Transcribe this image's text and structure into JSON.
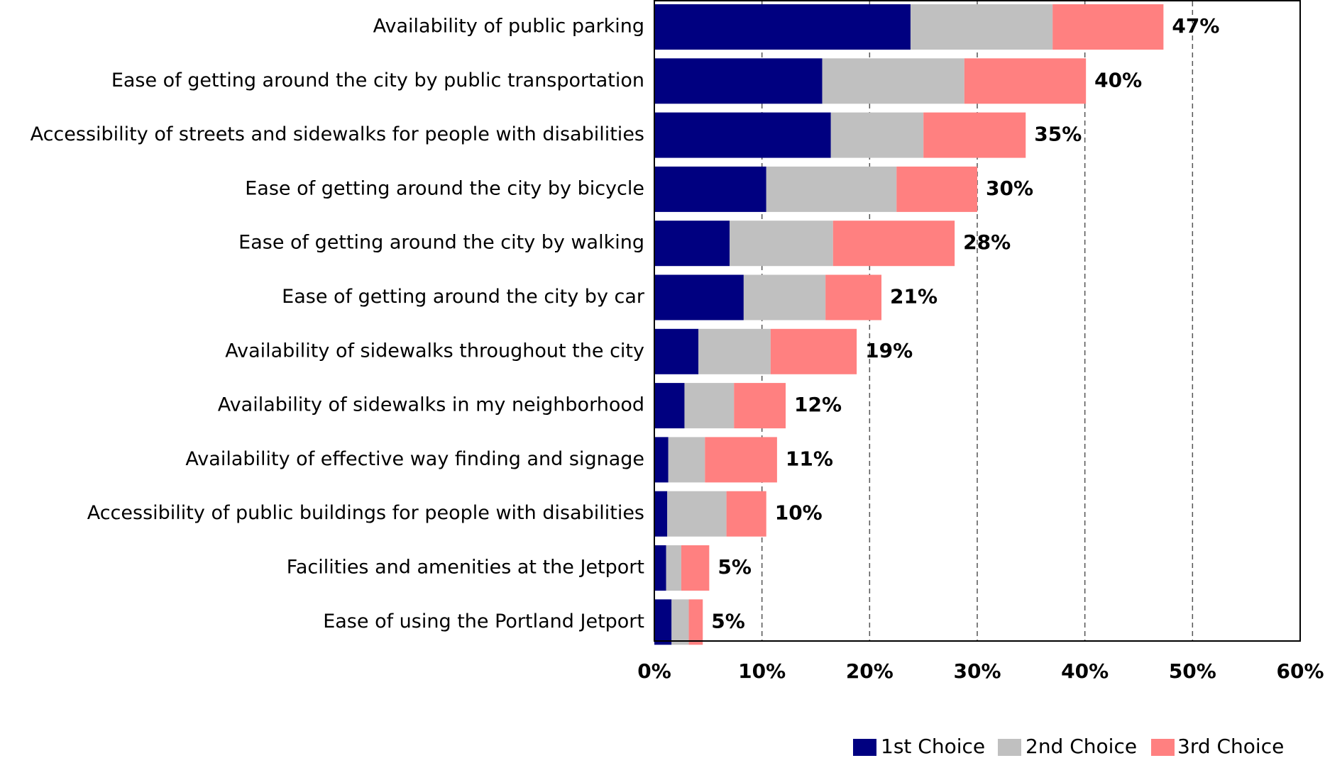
{
  "chart_data": {
    "type": "bar",
    "orientation": "horizontal",
    "stacked": true,
    "categories": [
      "Availability of public parking",
      "Ease of getting around the city by public transportation",
      "Accessibility of streets and sidewalks for people with disabilities",
      "Ease of getting around the city by bicycle",
      "Ease of getting around the city by walking",
      "Ease of getting around the city by car",
      "Availability of sidewalks throughout the city",
      "Availability of sidewalks in my neighborhood",
      "Availability of effective way finding and signage",
      "Accessibility of public buildings for people with disabilities",
      "Facilities and amenities at the Jetport",
      "Ease of using the Portland Jetport"
    ],
    "series": [
      {
        "name": "1st Choice",
        "color": "#000080",
        "values": [
          23.8,
          15.6,
          16.4,
          10.4,
          7.0,
          8.3,
          4.1,
          2.8,
          1.3,
          1.2,
          1.1,
          1.6
        ]
      },
      {
        "name": "2nd Choice",
        "color": "#C0C0C0",
        "values": [
          13.2,
          13.2,
          8.6,
          12.1,
          9.6,
          7.6,
          6.7,
          4.6,
          3.4,
          5.5,
          1.4,
          1.6
        ]
      },
      {
        "name": "3rd Choice",
        "color": "#FF8080",
        "values": [
          10.3,
          11.3,
          9.5,
          7.5,
          11.3,
          5.2,
          8.0,
          4.8,
          6.7,
          3.7,
          2.6,
          1.3
        ]
      }
    ],
    "totals": [
      "47%",
      "40%",
      "35%",
      "30%",
      "28%",
      "21%",
      "19%",
      "12%",
      "11%",
      "10%",
      "5%",
      "5%"
    ],
    "xlim": [
      0,
      60
    ],
    "xticks": [
      0,
      10,
      20,
      30,
      40,
      50,
      60
    ],
    "xtick_labels": [
      "0%",
      "10%",
      "20%",
      "30%",
      "40%",
      "50%",
      "60%"
    ],
    "grid": "vertical-dashed",
    "legend_position": "bottom-right"
  }
}
